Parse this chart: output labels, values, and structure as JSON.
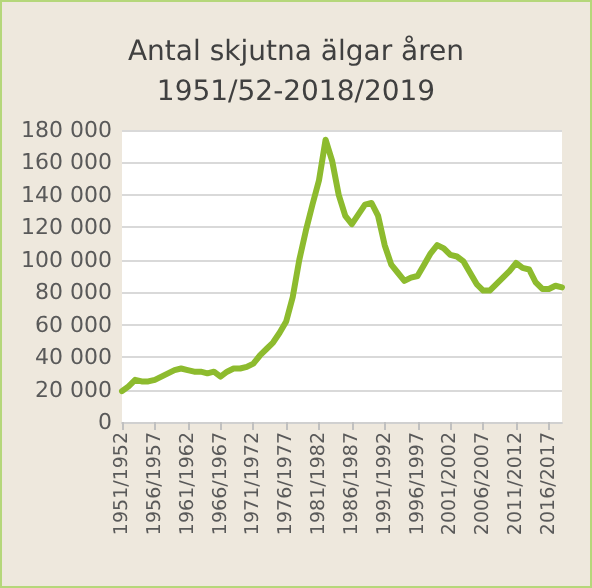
{
  "chart_data": {
    "type": "line",
    "title": "Antal skjutna älgar åren\n1951/52-2018/2019",
    "categories": [
      "1951/1952",
      null,
      null,
      null,
      null,
      "1956/1957",
      null,
      null,
      null,
      null,
      "1961/1962",
      null,
      null,
      null,
      null,
      "1966/1967",
      null,
      null,
      null,
      null,
      "1971/1972",
      null,
      null,
      null,
      null,
      "1976/1977",
      null,
      null,
      null,
      null,
      "1981/1982",
      null,
      null,
      null,
      null,
      "1986/1987",
      null,
      null,
      null,
      null,
      "1991/1992",
      null,
      null,
      null,
      null,
      "1996/1997",
      null,
      null,
      null,
      null,
      "2001/2002",
      null,
      null,
      null,
      null,
      "2006/2007",
      null,
      null,
      null,
      null,
      "2011/2012",
      null,
      null,
      null,
      null,
      "2016/2017",
      null,
      null
    ],
    "series": [
      {
        "color": "#8dbb2e",
        "values": [
          19000,
          22000,
          26000,
          25000,
          25000,
          26000,
          28000,
          30000,
          32000,
          33000,
          32000,
          31000,
          31000,
          30000,
          31000,
          28000,
          31000,
          33000,
          33000,
          34000,
          36000,
          41000,
          45000,
          49000,
          55000,
          62000,
          77000,
          100000,
          118000,
          134000,
          149000,
          174000,
          161000,
          140000,
          127000,
          122000,
          128000,
          134000,
          135000,
          127000,
          109000,
          97000,
          92000,
          87000,
          89000,
          90000,
          97000,
          104000,
          109000,
          107000,
          103000,
          102000,
          99000,
          92000,
          85000,
          81000,
          81000,
          85000,
          89000,
          93000,
          98000,
          95000,
          94000,
          86000,
          82000,
          82000,
          84000,
          83000
        ]
      }
    ],
    "ylim": [
      0,
      180000
    ],
    "yticks": [
      0,
      20000,
      40000,
      60000,
      80000,
      100000,
      120000,
      140000,
      160000,
      180000
    ],
    "grid": "y",
    "marker": "none",
    "line_style": "solid"
  }
}
